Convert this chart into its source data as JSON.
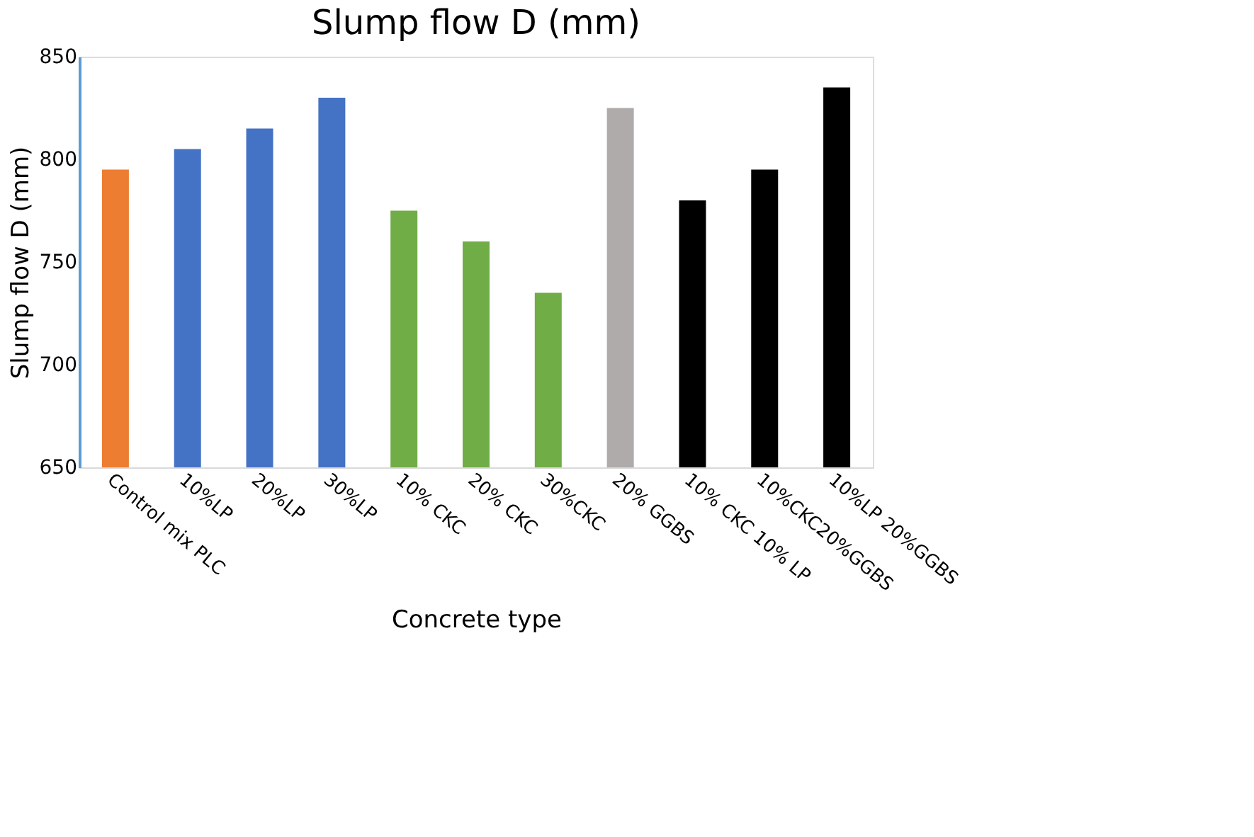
{
  "chart_data": {
    "type": "bar",
    "title": "Slump flow D (mm)",
    "xlabel": "Concrete type",
    "ylabel": "Slump flow D (mm)",
    "categories": [
      "Control mix PLC",
      "10%LP",
      "20%LP",
      "30%LP",
      "10% CKC",
      "20% CKC",
      "30%CKC",
      "20% GGBS",
      "10% CKC 10% LP",
      "10%CKC20%GGBS",
      "10%LP 20%GGBS"
    ],
    "values": [
      795,
      805,
      815,
      830,
      775,
      760,
      735,
      825,
      780,
      795,
      835
    ],
    "colors": [
      "#ed7d31",
      "#4472c4",
      "#4472c4",
      "#4472c4",
      "#70ad47",
      "#70ad47",
      "#70ad47",
      "#afabab",
      "#000000",
      "#000000",
      "#000000"
    ],
    "ylim": [
      650,
      850
    ],
    "yticks": [
      650,
      700,
      750,
      800,
      850
    ],
    "grid": false
  }
}
